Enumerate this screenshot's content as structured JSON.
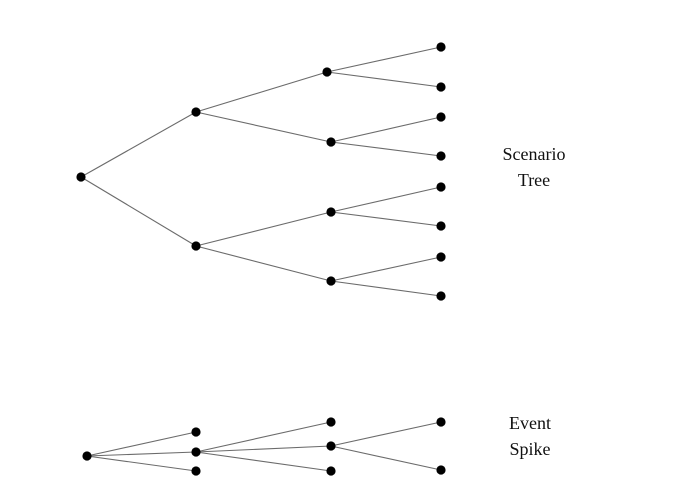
{
  "labels": {
    "scenario_tree": [
      "Scenario",
      "Tree"
    ],
    "event_spike": [
      "Event",
      "Spike"
    ]
  },
  "style": {
    "line_color": "#6b6b6b",
    "node_color": "#000000"
  },
  "diagrams": {
    "scenario_tree": {
      "nodes": [
        "root",
        "a",
        "b",
        "a1",
        "a2",
        "b1",
        "b2",
        "l1",
        "l2",
        "l3",
        "l4",
        "l5",
        "l6",
        "l7",
        "l8"
      ],
      "edges": [
        [
          "root",
          "a"
        ],
        [
          "root",
          "b"
        ],
        [
          "a",
          "a1"
        ],
        [
          "a",
          "a2"
        ],
        [
          "b",
          "b1"
        ],
        [
          "b",
          "b2"
        ],
        [
          "a1",
          "l1"
        ],
        [
          "a1",
          "l2"
        ],
        [
          "a2",
          "l3"
        ],
        [
          "a2",
          "l4"
        ],
        [
          "b1",
          "l5"
        ],
        [
          "b1",
          "l6"
        ],
        [
          "b2",
          "l7"
        ],
        [
          "b2",
          "l8"
        ]
      ]
    },
    "event_spike": {
      "nodes": [
        "root",
        "s1",
        "s2",
        "s3",
        "t1",
        "t2",
        "t3",
        "u1",
        "u2"
      ],
      "edges": [
        [
          "root",
          "s1"
        ],
        [
          "root",
          "s2"
        ],
        [
          "root",
          "s3"
        ],
        [
          "s2",
          "t1"
        ],
        [
          "s2",
          "t2"
        ],
        [
          "s2",
          "t3"
        ],
        [
          "t2",
          "u1"
        ],
        [
          "t2",
          "u2"
        ]
      ]
    }
  }
}
